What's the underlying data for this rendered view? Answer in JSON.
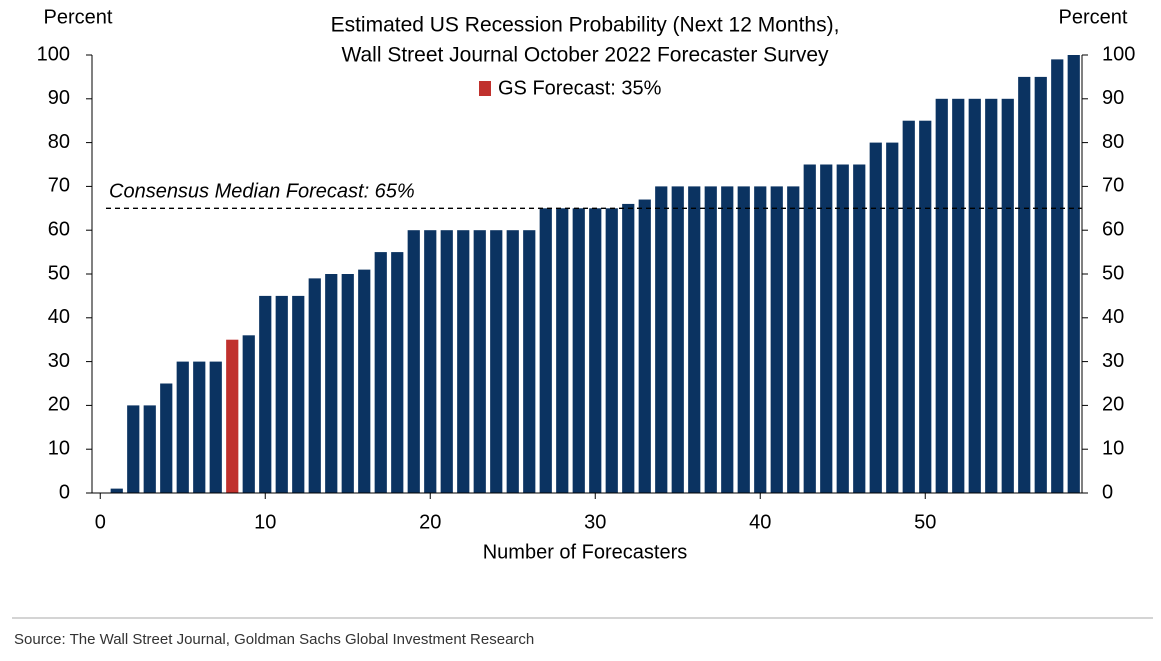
{
  "chart_data": {
    "type": "bar",
    "title": "Estimated US Recession Probability (Next 12 Months),",
    "subtitle": "Wall Street Journal October 2022 Forecaster Survey",
    "y_label": "Percent",
    "y2_label": "Percent",
    "x_label": "Number of Forecasters",
    "x": [
      1,
      2,
      3,
      4,
      5,
      6,
      7,
      8,
      9,
      10,
      11,
      12,
      13,
      14,
      15,
      16,
      17,
      18,
      19,
      20,
      21,
      22,
      23,
      24,
      25,
      26,
      27,
      28,
      29,
      30,
      31,
      32,
      33,
      34,
      35,
      36,
      37,
      38,
      39,
      40,
      41,
      42,
      43,
      44,
      45,
      46,
      47,
      48,
      49,
      50,
      51,
      52,
      53,
      54,
      55,
      56,
      57,
      58,
      59
    ],
    "series": [
      {
        "color": "#0b3361",
        "values": [
          1,
          20,
          20,
          25,
          30,
          30,
          30,
          null,
          36,
          45,
          45,
          45,
          49,
          50,
          50,
          51,
          55,
          55,
          60,
          60,
          60,
          60,
          60,
          60,
          60,
          60,
          65,
          65,
          65,
          65,
          65,
          66,
          67,
          70,
          70,
          70,
          70,
          70,
          70,
          70,
          70,
          70,
          75,
          75,
          75,
          75,
          80,
          80,
          85,
          85,
          90,
          90,
          90,
          90,
          90,
          95,
          95,
          99,
          100
        ]
      },
      {
        "name": "GS Forecast: 35%",
        "color": "#c0312d",
        "values": [
          null,
          null,
          null,
          null,
          null,
          null,
          null,
          35,
          null,
          null,
          null,
          null,
          null,
          null,
          null,
          null,
          null,
          null,
          null,
          null,
          null,
          null,
          null,
          null,
          null,
          null,
          null,
          null,
          null,
          null,
          null,
          null,
          null,
          null,
          null,
          null,
          null,
          null,
          null,
          null,
          null,
          null,
          null,
          null,
          null,
          null,
          null,
          null,
          null,
          null,
          null,
          null,
          null,
          null,
          null,
          null,
          null,
          null,
          null
        ]
      }
    ],
    "reference_line": {
      "value": 65,
      "label": "Consensus Median Forecast: 65%"
    },
    "xlim": [
      -0.5,
      59.5
    ],
    "xticks": [
      0,
      10,
      20,
      30,
      40,
      50
    ],
    "ylim": [
      0,
      100
    ],
    "yticks": [
      0,
      10,
      20,
      30,
      40,
      50,
      60,
      70,
      80,
      90,
      100
    ],
    "y2lim": [
      0,
      100
    ],
    "y2ticks": [
      0,
      10,
      20,
      30,
      40,
      50,
      60,
      70,
      80,
      90,
      100
    ],
    "source": "Source: The Wall Street Journal, Goldman Sachs Global Investment Research"
  }
}
